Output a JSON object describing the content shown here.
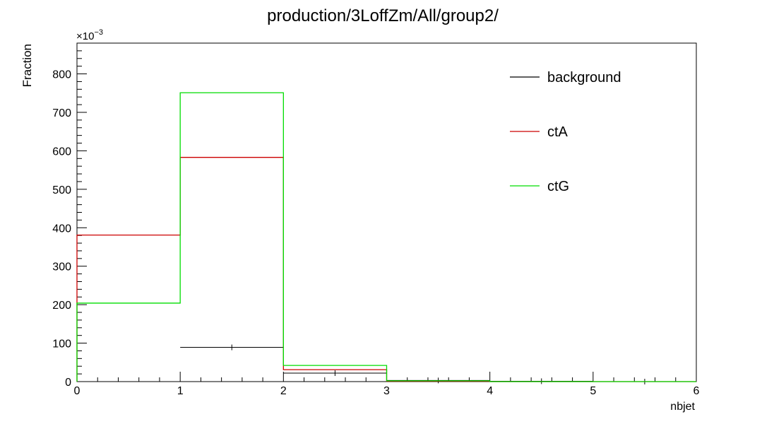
{
  "chart_data": {
    "type": "histogram",
    "title": "production/3LoffZm/All/group2/",
    "xlabel": "nbjet",
    "ylabel": "Fraction",
    "y_multiplier": "×10",
    "y_multiplier_exp": "−3",
    "xlim": [
      0,
      6
    ],
    "ylim": [
      0,
      880
    ],
    "x_ticks": [
      "0",
      "1",
      "2",
      "3",
      "4",
      "5",
      "6"
    ],
    "y_ticks": [
      "0",
      "100",
      "200",
      "300",
      "400",
      "500",
      "600",
      "700",
      "800"
    ],
    "bin_edges": [
      0,
      1,
      2,
      3,
      4,
      5,
      6
    ],
    "legend_position": "top-right",
    "series": [
      {
        "name": "background",
        "color": "#000000",
        "values": [
          null,
          89,
          22,
          3,
          1,
          0
        ],
        "error_bars": true
      },
      {
        "name": "ctA",
        "color": "#cc0000",
        "values": [
          381,
          583,
          31,
          1,
          0,
          0
        ]
      },
      {
        "name": "ctG",
        "color": "#00dd00",
        "values": [
          204,
          751,
          42,
          2,
          0,
          0
        ]
      }
    ]
  }
}
